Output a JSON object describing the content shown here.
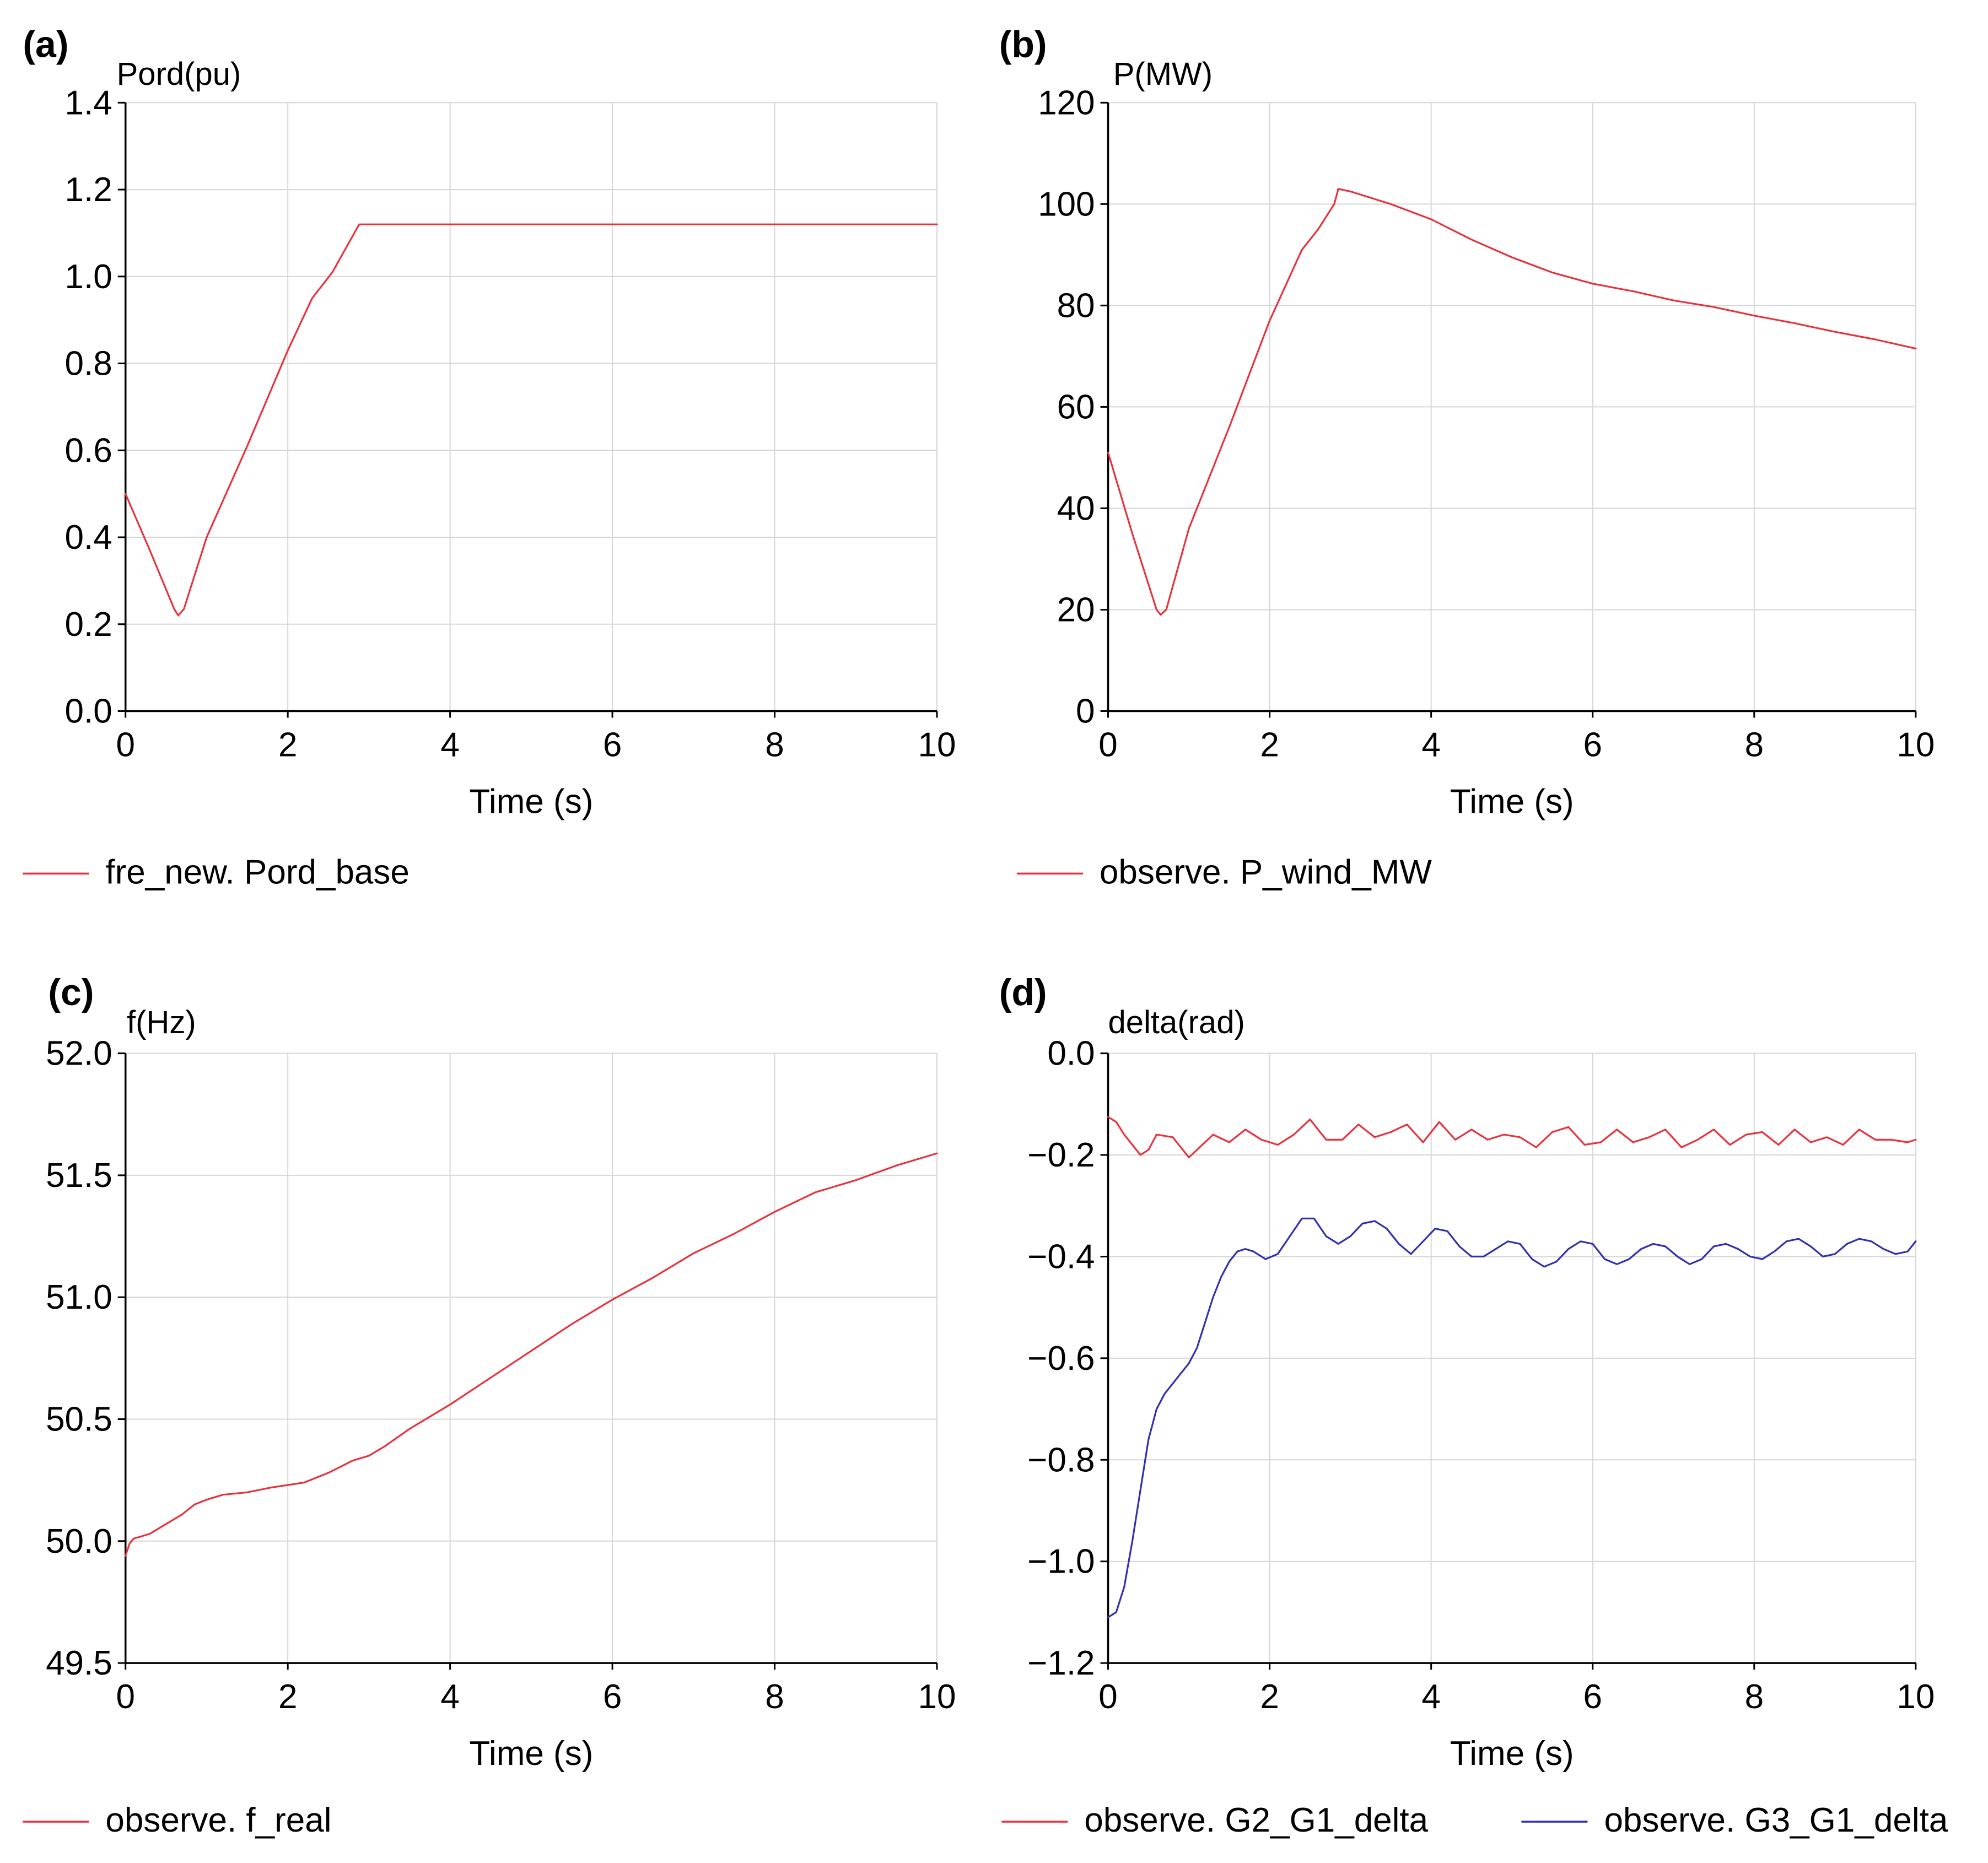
{
  "colors": {
    "series_red": "#e8323c",
    "series_blue": "#3030b0",
    "grid": "#d6d6d6",
    "axis": "#000000"
  },
  "chart_data": [
    {
      "panel_label": "(a)",
      "type": "line",
      "ylabel": "Pord(pu)",
      "xlabel": "Time (s)",
      "xlim": [
        0,
        10
      ],
      "ylim": [
        0,
        1.4
      ],
      "xticks": [
        0,
        2,
        4,
        6,
        8,
        10
      ],
      "xtick_labels": [
        "0",
        "2",
        "4",
        "6",
        "8",
        "10"
      ],
      "yticks": [
        0,
        0.2,
        0.4,
        0.6,
        0.8,
        1.0,
        1.2,
        1.4
      ],
      "ytick_labels": [
        "0.0",
        "0.2",
        "0.4",
        "0.6",
        "0.8",
        "1.0",
        "1.2",
        "1.4"
      ],
      "grid": true,
      "legend": "bottom-left",
      "series": [
        {
          "name": "fre_new. Pord_base",
          "color": "#e8323c",
          "x": [
            0,
            0.3,
            0.6,
            0.65,
            0.72,
            1.0,
            1.5,
            2.0,
            2.3,
            2.55,
            2.7,
            2.82,
            2.88,
            4,
            6,
            8,
            10
          ],
          "y": [
            0.5,
            0.37,
            0.235,
            0.22,
            0.235,
            0.4,
            0.61,
            0.83,
            0.95,
            1.01,
            1.06,
            1.1,
            1.12,
            1.12,
            1.12,
            1.12,
            1.12
          ]
        }
      ]
    },
    {
      "panel_label": "(b)",
      "type": "line",
      "ylabel": "P(MW)",
      "xlabel": "Time (s)",
      "xlim": [
        0,
        10
      ],
      "ylim": [
        0,
        120
      ],
      "xticks": [
        0,
        2,
        4,
        6,
        8,
        10
      ],
      "xtick_labels": [
        "0",
        "2",
        "4",
        "6",
        "8",
        "10"
      ],
      "yticks": [
        0,
        20,
        40,
        60,
        80,
        100,
        120
      ],
      "ytick_labels": [
        "0",
        "20",
        "40",
        "60",
        "80",
        "100",
        "120"
      ],
      "grid": true,
      "legend": "bottom-left",
      "series": [
        {
          "name": "observe. P_wind_MW",
          "color": "#e8323c",
          "x": [
            0,
            0.3,
            0.6,
            0.65,
            0.72,
            1.0,
            1.5,
            2.0,
            2.4,
            2.6,
            2.8,
            2.85,
            3.0,
            3.5,
            4.0,
            4.5,
            5.0,
            5.5,
            6.0,
            6.5,
            7.0,
            7.5,
            8.0,
            8.5,
            9.0,
            9.5,
            10.0
          ],
          "y": [
            51,
            35,
            20,
            19,
            20,
            36,
            56,
            77,
            91,
            95,
            100,
            103,
            102.5,
            100,
            97,
            93,
            89.5,
            86.5,
            84.3,
            82.8,
            81,
            79.7,
            78,
            76.5,
            74.8,
            73.3,
            71.5
          ]
        }
      ]
    },
    {
      "panel_label": "(c)",
      "type": "line",
      "ylabel": "f(Hz)",
      "xlabel": "Time (s)",
      "xlim": [
        0,
        10
      ],
      "ylim": [
        49.5,
        52.0
      ],
      "xticks": [
        0,
        2,
        4,
        6,
        8,
        10
      ],
      "xtick_labels": [
        "0",
        "2",
        "4",
        "6",
        "8",
        "10"
      ],
      "yticks": [
        49.5,
        50.0,
        50.5,
        51.0,
        51.5,
        52.0
      ],
      "ytick_labels": [
        "49.5",
        "50.0",
        "50.5",
        "51.0",
        "51.5",
        "52.0"
      ],
      "grid": true,
      "legend": "bottom-left",
      "series": [
        {
          "name": "observe. f_real",
          "color": "#e8323c",
          "x": [
            0,
            0.05,
            0.1,
            0.3,
            0.5,
            0.7,
            0.85,
            1.0,
            1.2,
            1.5,
            1.8,
            2.0,
            2.2,
            2.5,
            2.8,
            3.0,
            3.2,
            3.5,
            4.0,
            4.5,
            5.0,
            5.5,
            6.0,
            6.5,
            7.0,
            7.5,
            8.0,
            8.5,
            9.0,
            9.5,
            10.0
          ],
          "y": [
            49.94,
            49.99,
            50.01,
            50.03,
            50.07,
            50.11,
            50.15,
            50.17,
            50.19,
            50.2,
            50.22,
            50.23,
            50.24,
            50.28,
            50.33,
            50.35,
            50.39,
            50.46,
            50.56,
            50.67,
            50.78,
            50.89,
            50.99,
            51.08,
            51.18,
            51.26,
            51.35,
            51.43,
            51.48,
            51.54,
            51.59
          ]
        }
      ]
    },
    {
      "panel_label": "(d)",
      "type": "line",
      "ylabel": "delta(rad)",
      "xlabel": "Time (s)",
      "xlim": [
        0,
        10
      ],
      "ylim": [
        -1.2,
        0.0
      ],
      "xticks": [
        0,
        2,
        4,
        6,
        8,
        10
      ],
      "xtick_labels": [
        "0",
        "2",
        "4",
        "6",
        "8",
        "10"
      ],
      "yticks": [
        -1.2,
        -1.0,
        -0.8,
        -0.6,
        -0.4,
        -0.2,
        0.0
      ],
      "ytick_labels": [
        "−1.2",
        "−1.0",
        "−0.8",
        "−0.6",
        "−0.4",
        "−0.2",
        "0.0"
      ],
      "grid": true,
      "legend": "bottom",
      "series": [
        {
          "name": "observe. G2_G1_delta",
          "color": "#e8323c",
          "x": [
            0,
            0.1,
            0.2,
            0.4,
            0.5,
            0.6,
            0.8,
            1.0,
            1.1,
            1.3,
            1.5,
            1.7,
            1.9,
            2.1,
            2.3,
            2.5,
            2.7,
            2.9,
            3.1,
            3.3,
            3.5,
            3.7,
            3.9,
            4.1,
            4.3,
            4.5,
            4.7,
            4.9,
            5.1,
            5.3,
            5.5,
            5.7,
            5.9,
            6.1,
            6.3,
            6.5,
            6.7,
            6.9,
            7.1,
            7.3,
            7.5,
            7.7,
            7.9,
            8.1,
            8.3,
            8.5,
            8.7,
            8.9,
            9.1,
            9.3,
            9.5,
            9.7,
            9.9,
            10.0
          ],
          "y": [
            -0.125,
            -0.135,
            -0.16,
            -0.2,
            -0.19,
            -0.16,
            -0.165,
            -0.205,
            -0.19,
            -0.16,
            -0.175,
            -0.15,
            -0.17,
            -0.18,
            -0.16,
            -0.13,
            -0.17,
            -0.17,
            -0.14,
            -0.165,
            -0.155,
            -0.14,
            -0.175,
            -0.135,
            -0.17,
            -0.15,
            -0.17,
            -0.16,
            -0.165,
            -0.185,
            -0.155,
            -0.145,
            -0.18,
            -0.175,
            -0.15,
            -0.175,
            -0.165,
            -0.15,
            -0.185,
            -0.17,
            -0.15,
            -0.18,
            -0.16,
            -0.155,
            -0.18,
            -0.15,
            -0.175,
            -0.165,
            -0.18,
            -0.15,
            -0.17,
            -0.17,
            -0.175,
            -0.17
          ]
        },
        {
          "name": "observe. G3_G1_delta",
          "color": "#3030b0",
          "x": [
            0,
            0.1,
            0.2,
            0.3,
            0.4,
            0.5,
            0.6,
            0.7,
            0.8,
            0.9,
            1.0,
            1.1,
            1.2,
            1.3,
            1.4,
            1.5,
            1.6,
            1.7,
            1.8,
            1.95,
            2.1,
            2.25,
            2.4,
            2.55,
            2.7,
            2.85,
            3.0,
            3.15,
            3.3,
            3.45,
            3.6,
            3.75,
            3.9,
            4.05,
            4.2,
            4.35,
            4.5,
            4.65,
            4.8,
            4.95,
            5.1,
            5.25,
            5.4,
            5.55,
            5.7,
            5.85,
            6.0,
            6.15,
            6.3,
            6.45,
            6.6,
            6.75,
            6.9,
            7.05,
            7.2,
            7.35,
            7.5,
            7.65,
            7.8,
            7.95,
            8.1,
            8.25,
            8.4,
            8.55,
            8.7,
            8.85,
            9.0,
            9.15,
            9.3,
            9.45,
            9.6,
            9.75,
            9.9,
            10.0
          ],
          "y": [
            -1.11,
            -1.1,
            -1.05,
            -0.96,
            -0.86,
            -0.76,
            -0.7,
            -0.67,
            -0.65,
            -0.63,
            -0.61,
            -0.58,
            -0.53,
            -0.48,
            -0.44,
            -0.41,
            -0.39,
            -0.385,
            -0.39,
            -0.405,
            -0.395,
            -0.36,
            -0.325,
            -0.325,
            -0.36,
            -0.375,
            -0.36,
            -0.335,
            -0.33,
            -0.345,
            -0.375,
            -0.395,
            -0.37,
            -0.345,
            -0.35,
            -0.38,
            -0.4,
            -0.4,
            -0.385,
            -0.37,
            -0.375,
            -0.405,
            -0.42,
            -0.41,
            -0.385,
            -0.37,
            -0.375,
            -0.405,
            -0.415,
            -0.405,
            -0.385,
            -0.375,
            -0.38,
            -0.4,
            -0.415,
            -0.405,
            -0.38,
            -0.375,
            -0.385,
            -0.4,
            -0.405,
            -0.39,
            -0.37,
            -0.365,
            -0.38,
            -0.4,
            -0.395,
            -0.375,
            -0.365,
            -0.37,
            -0.385,
            -0.395,
            -0.39,
            -0.37
          ]
        }
      ]
    }
  ]
}
